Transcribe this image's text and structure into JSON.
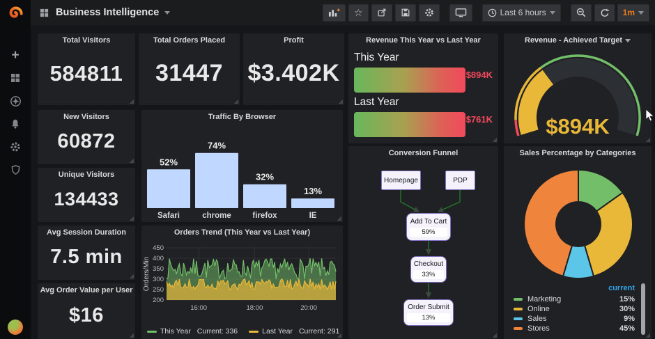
{
  "navbar": {
    "title": "Business Intelligence",
    "time_range": "Last 6 hours",
    "interval": "1m",
    "button_icons": [
      "add-panel",
      "star",
      "share",
      "save",
      "settings",
      "tv-mode",
      "time-range",
      "zoom-out",
      "refresh",
      "interval"
    ]
  },
  "sidebar": {
    "icons": [
      "create-plus",
      "dashboards-grid",
      "explore-compass",
      "alerting-bell",
      "configuration-gear",
      "admin-shield",
      "user-avatar"
    ]
  },
  "panels": {
    "total_visitors": {
      "title": "Total Visitors",
      "value": "584811"
    },
    "total_orders": {
      "title": "Total Orders Placed",
      "value": "31447"
    },
    "profit": {
      "title": "Profit",
      "value": "$3.402K"
    },
    "new_visitors": {
      "title": "New Visitors",
      "value": "60872"
    },
    "unique_visitors": {
      "title": "Unique Visitors",
      "value": "134433"
    },
    "avg_session_duration": {
      "title": "Avg Session Duration",
      "value": "7.5 min"
    },
    "avg_order_value": {
      "title": "Avg Order Value per User",
      "value": "$16"
    },
    "revenue_compare": {
      "title": "Revenue This Year vs Last Year",
      "rows": [
        {
          "label": "This Year",
          "value": "$894K"
        },
        {
          "label": "Last Year",
          "value": "$761K"
        }
      ],
      "value_color": "#f2495c"
    },
    "conversion_funnel": {
      "title": "Conversion Funnel",
      "steps": [
        {
          "label": "Homepage"
        },
        {
          "label": "PDP"
        },
        {
          "label": "Add To Cart",
          "pct": "59%"
        },
        {
          "label": "Checkout",
          "pct": "33%"
        },
        {
          "label": "Order Submit",
          "pct": "13%"
        }
      ]
    }
  },
  "chart_data": [
    {
      "id": "traffic_by_browser",
      "type": "bar",
      "title": "Traffic By Browser",
      "categories": [
        "Safari",
        "chrome",
        "firefox",
        "IE"
      ],
      "values": [
        52,
        74,
        32,
        13
      ],
      "labels": [
        "52%",
        "74%",
        "32%",
        "13%"
      ],
      "bar_color": "#c0d8ff",
      "ylim": [
        0,
        100
      ],
      "grid": false,
      "legend": "none"
    },
    {
      "id": "orders_trend",
      "type": "area",
      "title": "Orders Trend (This Year vs Last Year)",
      "ylabel": "Orders/Min",
      "ylim": [
        200,
        450
      ],
      "yticks": [
        200,
        250,
        300,
        350,
        400,
        450
      ],
      "xticks": [
        {
          "label": "16:00",
          "pos": 0.19
        },
        {
          "label": "18:00",
          "pos": 0.52
        },
        {
          "label": "20:00",
          "pos": 0.84
        }
      ],
      "series": [
        {
          "name": "This Year",
          "current": 336,
          "min": 300,
          "max": 400,
          "color": "#73bf69",
          "fill_opacity": 0.5
        },
        {
          "name": "Last Year",
          "current": 291,
          "min": 248,
          "max": 302,
          "color": "#eab839",
          "fill_opacity": 0.68
        }
      ],
      "legend_current_prefix": "Current:",
      "legend_position": "bottom"
    },
    {
      "id": "revenue_gauge",
      "type": "gauge",
      "title": "Revenue - Achieved Target",
      "value_text": "$894K",
      "value_color": "#eab839",
      "fraction": 0.33,
      "thresholds": [
        {
          "to": 0.07,
          "color": "#f2495c"
        },
        {
          "to": 0.33,
          "color": "#eab839"
        },
        {
          "to": 1,
          "color": "#73bf69"
        }
      ]
    },
    {
      "id": "sales_by_category",
      "type": "pie",
      "title": "Sales Percentage by Categories",
      "donut": true,
      "legend_header": "current",
      "slices": [
        {
          "label": "Marketing",
          "value": 15,
          "text": "15%",
          "color": "#73bf69"
        },
        {
          "label": "Online",
          "value": 30,
          "text": "30%",
          "color": "#eab839"
        },
        {
          "label": "Sales",
          "value": 9,
          "text": "9%",
          "color": "#5bc6e8"
        },
        {
          "label": "Stores",
          "value": 45,
          "text": "45%",
          "color": "#ef843c"
        }
      ]
    }
  ]
}
